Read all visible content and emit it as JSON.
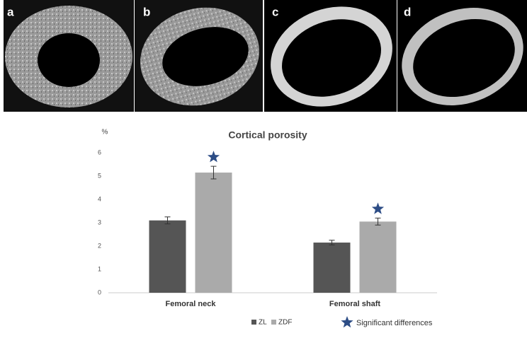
{
  "panels": [
    "a",
    "b",
    "c",
    "d"
  ],
  "chart_data": {
    "type": "bar",
    "title": "Cortical porosity",
    "y_label": "%",
    "categories": [
      "Femoral neck",
      "Femoral shaft"
    ],
    "series": [
      {
        "name": "ZL",
        "color": "#555555",
        "values": [
          3.1,
          2.15
        ],
        "errors": [
          0.15,
          0.1
        ]
      },
      {
        "name": "ZDF",
        "color": "#aaaaaa",
        "values": [
          5.15,
          3.05
        ],
        "errors": [
          0.27,
          0.15
        ]
      }
    ],
    "significance_label": "Significant differences",
    "star_color": "#2d4d86",
    "ylim": [
      0,
      6
    ],
    "yticks": [
      0,
      1,
      2,
      3,
      4,
      5,
      6
    ],
    "grid": false
  }
}
